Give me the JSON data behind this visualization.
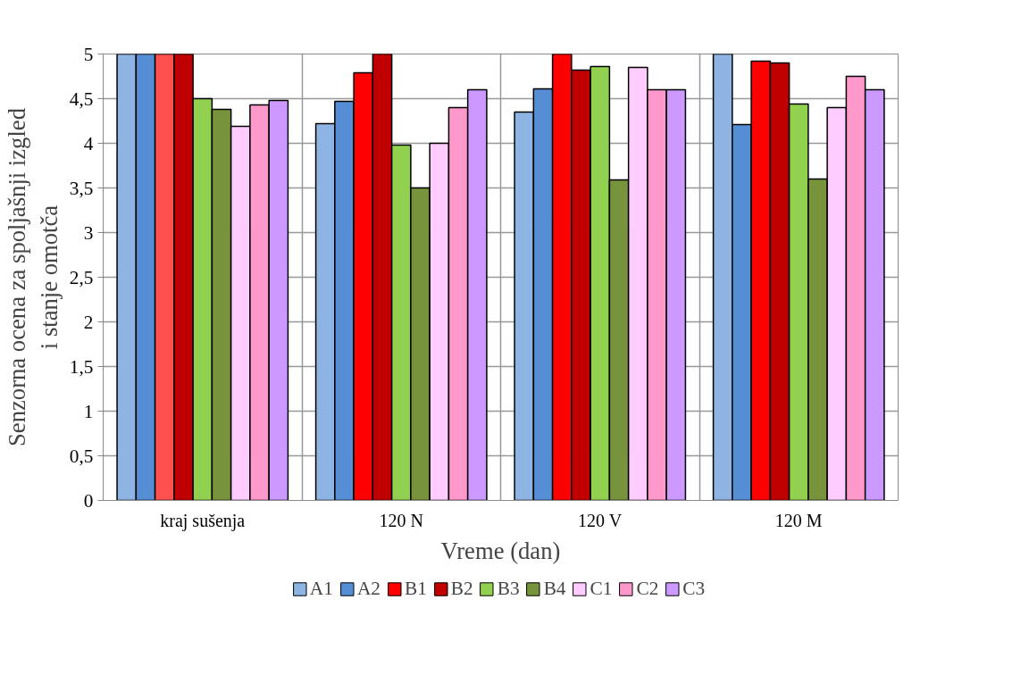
{
  "chart_data": {
    "type": "bar",
    "xlabel": "Vreme (dan)",
    "ylabel": "Senzorna ocena za spoljašnji izgled\ni stanje omotča",
    "categories": [
      "kraj sušenja",
      "120 N",
      "120 V",
      "120 M"
    ],
    "series": [
      {
        "name": "A1",
        "color": "#8eb4e3",
        "values": [
          5,
          4.22,
          4.35,
          5
        ]
      },
      {
        "name": "A2",
        "color": "#558ed5",
        "values": [
          5,
          4.47,
          4.61,
          4.21
        ]
      },
      {
        "name": "B1",
        "color": "#ff0000",
        "colors": [
          "#ff5050",
          "#ff0000",
          "#ff0000",
          "#ff0000"
        ],
        "values": [
          5,
          4.79,
          5,
          4.92
        ]
      },
      {
        "name": "B2",
        "color": "#c00000",
        "values": [
          5,
          5,
          4.82,
          4.9
        ]
      },
      {
        "name": "B3",
        "color": "#92d050",
        "values": [
          4.5,
          3.98,
          4.86,
          4.44
        ]
      },
      {
        "name": "B4",
        "color": "#77933c",
        "values": [
          4.38,
          3.5,
          3.59,
          3.6
        ]
      },
      {
        "name": "C1",
        "color": "#ffccff",
        "values": [
          4.19,
          4.0,
          4.85,
          4.4
        ]
      },
      {
        "name": "C2",
        "color": "#ff99cc",
        "values": [
          4.43,
          4.4,
          4.6,
          4.75
        ]
      },
      {
        "name": "C3",
        "color": "#cc99ff",
        "values": [
          4.48,
          4.6,
          4.6,
          4.6
        ]
      }
    ],
    "ylim": [
      0,
      5
    ],
    "yticks": [
      0,
      {
        "value": 0.5,
        "label": "0,5"
      },
      1,
      {
        "value": 1.5,
        "label": "1,5"
      },
      2,
      {
        "value": 2.5,
        "label": "2,5"
      },
      3,
      {
        "value": 3.5,
        "label": "3,5"
      },
      4,
      {
        "value": 4.5,
        "label": "4,5"
      },
      5
    ],
    "grid": true,
    "legend": "bottom"
  }
}
